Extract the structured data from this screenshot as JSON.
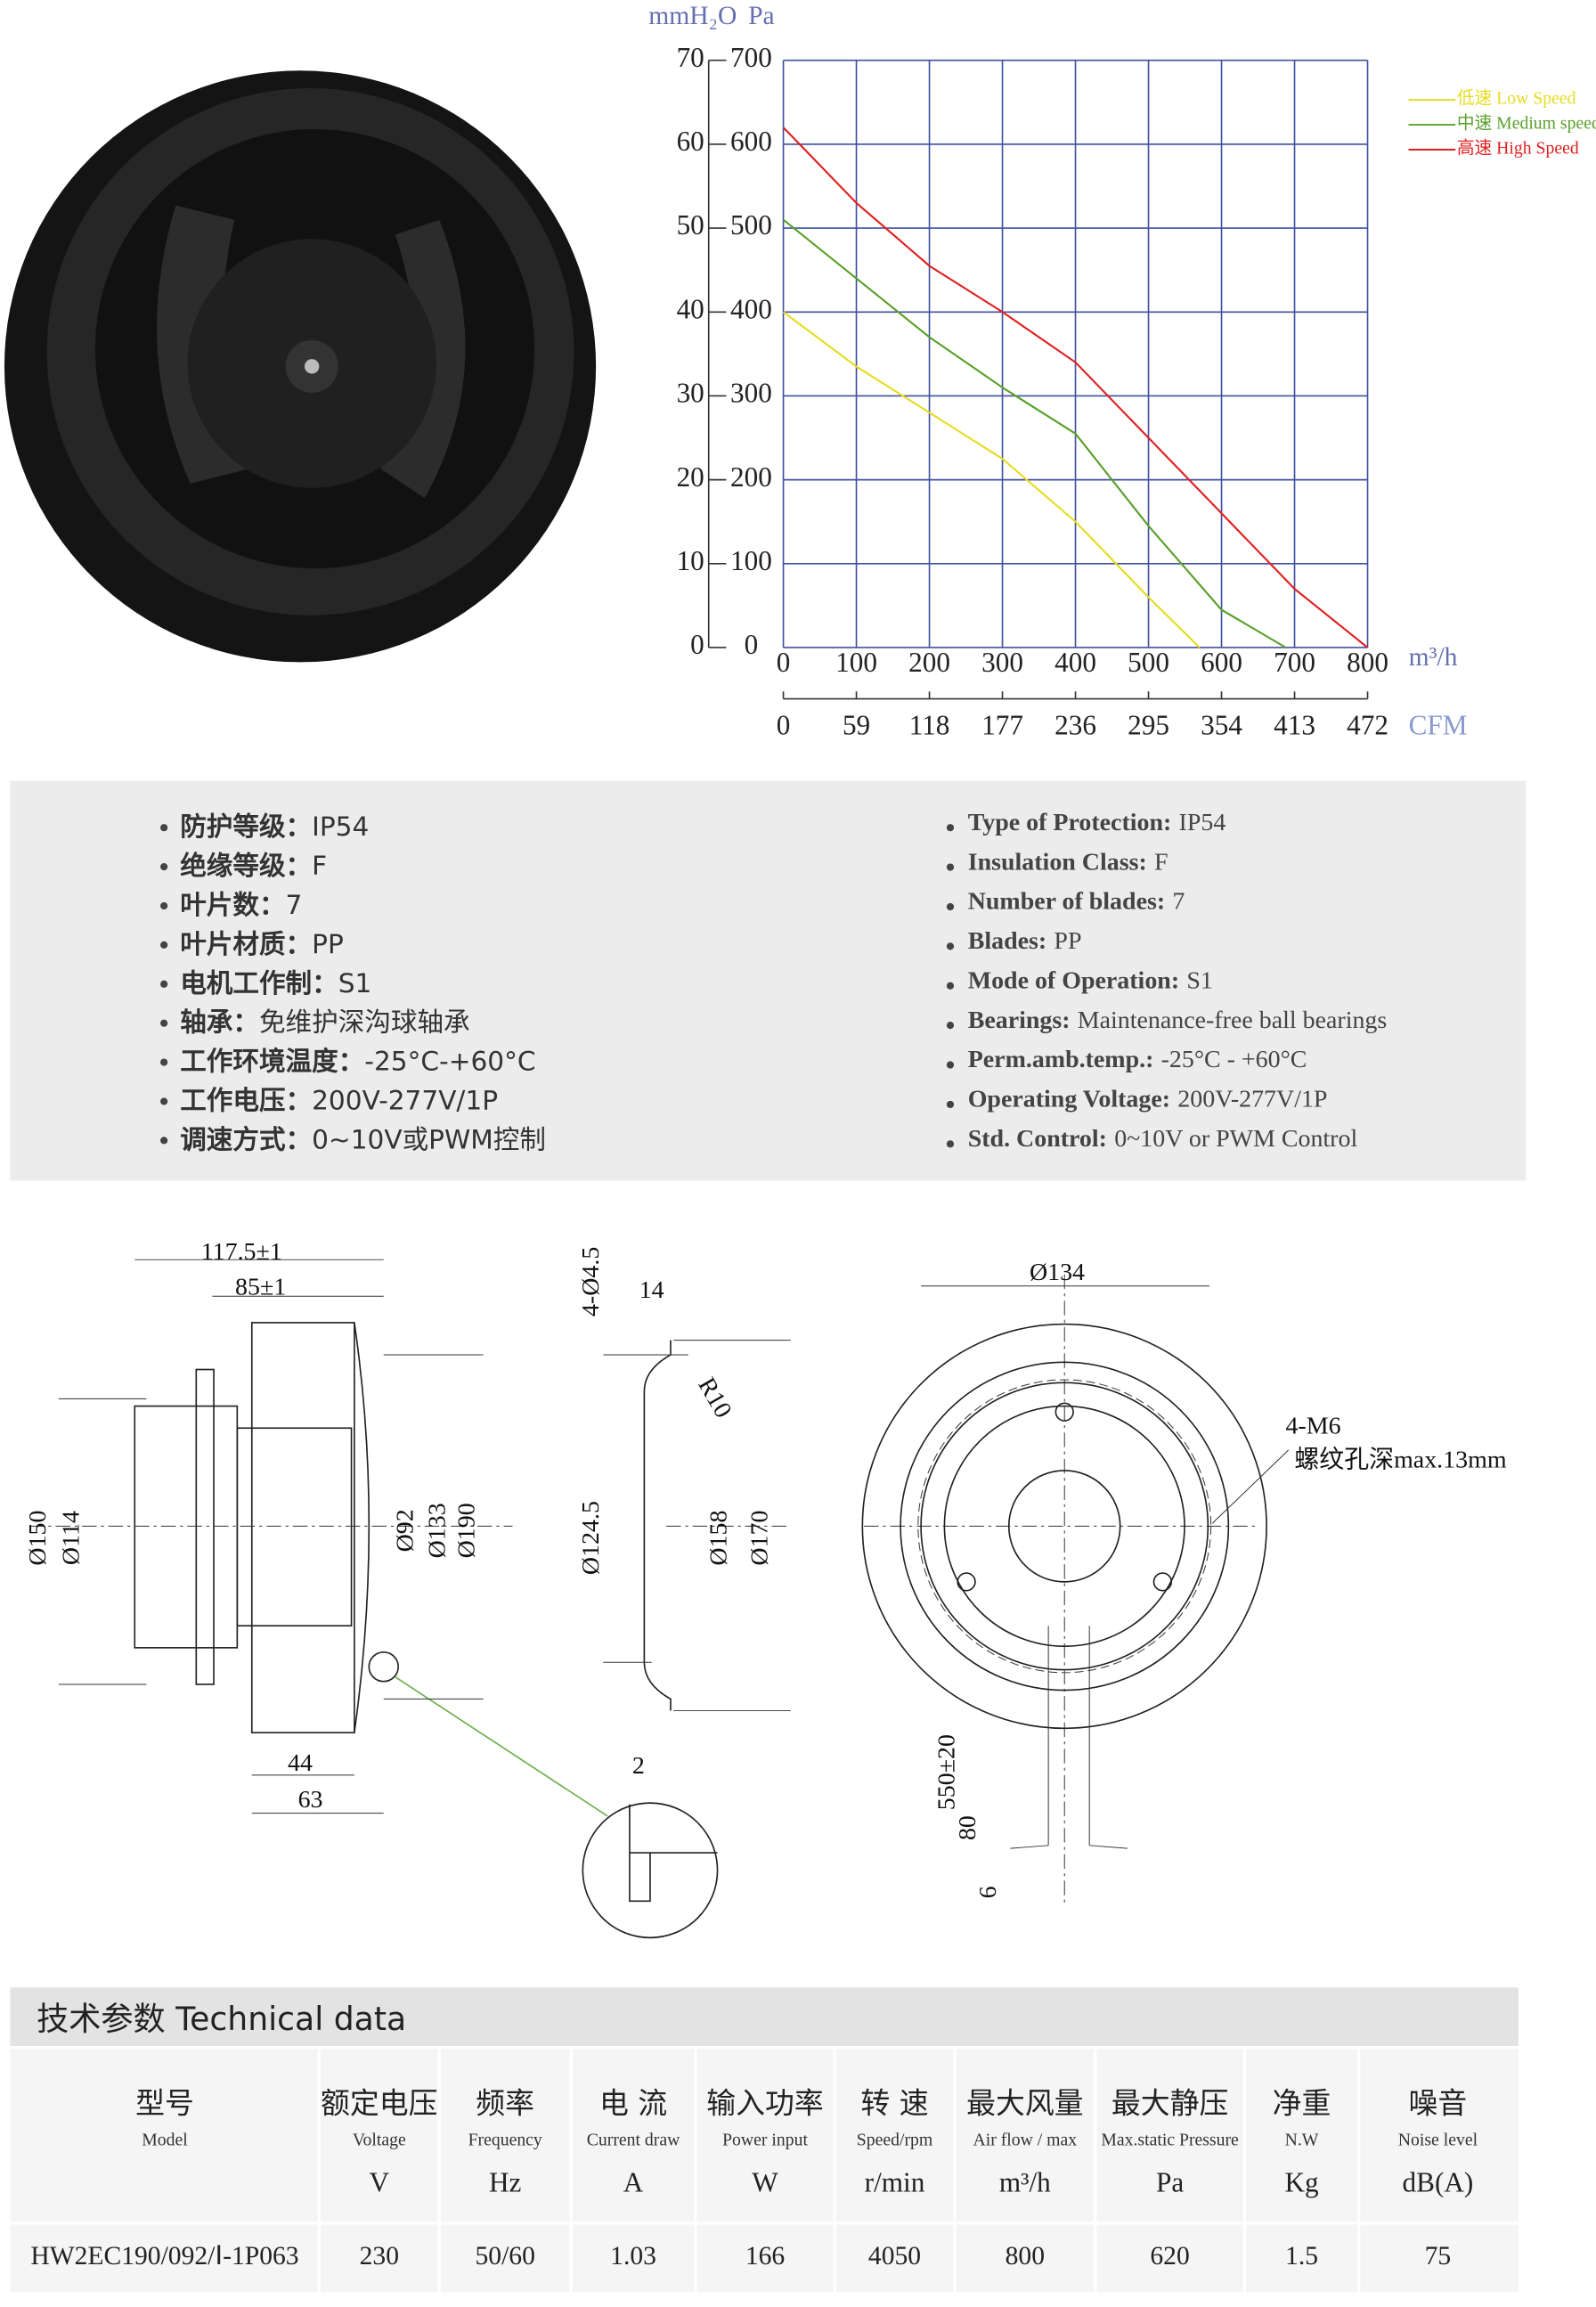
{
  "chart_data": {
    "type": "line",
    "y2_label": "mmH₂O",
    "y_label": "Pa",
    "x_label": "m³/h",
    "x2_label": "CFM",
    "xlim": [
      0,
      800
    ],
    "xticks": [
      0,
      100,
      200,
      300,
      400,
      500,
      600,
      700,
      800
    ],
    "x2lim": [
      0,
      472
    ],
    "x2ticks": [
      0,
      59,
      118,
      177,
      236,
      295,
      354,
      413,
      472
    ],
    "ylim": [
      0,
      700
    ],
    "yticks": [
      0,
      100,
      200,
      300,
      400,
      500,
      600,
      700
    ],
    "y2lim": [
      0,
      70
    ],
    "y2ticks": [
      0,
      10,
      20,
      30,
      40,
      50,
      60,
      70
    ],
    "grid": true,
    "legend": "top right",
    "series": [
      {
        "name": "低速 Low Speed",
        "color": "#e6dc1e",
        "x": [
          0,
          100,
          200,
          300,
          400,
          500,
          570
        ],
        "values": [
          400,
          335,
          280,
          225,
          150,
          60,
          0
        ]
      },
      {
        "name": "中速 Medium speed",
        "color": "#5aa02a",
        "x": [
          0,
          100,
          200,
          300,
          400,
          500,
          600,
          688
        ],
        "values": [
          510,
          440,
          370,
          310,
          255,
          145,
          45,
          0
        ]
      },
      {
        "name": "高速 High Speed",
        "color": "#e02020",
        "x": [
          0,
          100,
          200,
          300,
          400,
          500,
          600,
          700,
          800
        ],
        "values": [
          620,
          530,
          455,
          400,
          340,
          250,
          160,
          70,
          0
        ]
      }
    ]
  },
  "specs_zh": [
    {
      "label": "防护等级：",
      "value": "IP54"
    },
    {
      "label": "绝缘等级：",
      "value": "F"
    },
    {
      "label": "叶片数：",
      "value": "7"
    },
    {
      "label": "叶片材质：",
      "value": "PP"
    },
    {
      "label": "电机工作制：",
      "value": "S1"
    },
    {
      "label": "轴承：",
      "value": "免维护深沟球轴承"
    },
    {
      "label": "工作环境温度：",
      "value": "-25°C-+60°C"
    },
    {
      "label": "工作电压：",
      "value": "200V-277V/1P"
    },
    {
      "label": "调速方式：",
      "value": "0~10V或PWM控制"
    }
  ],
  "specs_en": [
    {
      "label": "Type of Protection:",
      "value": "IP54"
    },
    {
      "label": "Insulation Class:",
      "value": "F"
    },
    {
      "label": "Number of blades:",
      "value": "7"
    },
    {
      "label": "Blades:",
      "value": "PP"
    },
    {
      "label": "Mode of Operation:",
      "value": "S1"
    },
    {
      "label": "Bearings:",
      "value": "Maintenance-free ball bearings"
    },
    {
      "label": "Perm.amb.temp.:",
      "value": "-25°C - +60°C"
    },
    {
      "label": "Operating Voltage:",
      "value": "200V-277V/1P"
    },
    {
      "label": "Std. Control:",
      "value": "0~10V or PWM Control"
    }
  ],
  "drawing": {
    "labels": [
      "117.5±1",
      "85±1",
      "Ø150",
      "Ø114",
      "Ø92",
      "Ø133",
      "Ø190",
      "44",
      "63",
      "4-Ø4.5",
      "14",
      "R10",
      "Ø124.5",
      "Ø158",
      "Ø170",
      "2",
      "Ø134",
      "4-M6",
      "螺纹孔深max.13mm",
      "550±20",
      "80",
      "6"
    ]
  },
  "table": {
    "title": "技术参数 Technical data",
    "columns": [
      {
        "zh": "型号",
        "en": "Model",
        "unit": ""
      },
      {
        "zh": "额定电压",
        "en": "Voltage",
        "unit": "V"
      },
      {
        "zh": "频率",
        "en": "Frequency",
        "unit": "Hz"
      },
      {
        "zh": "电 流",
        "en": "Current draw",
        "unit": "A"
      },
      {
        "zh": "输入功率",
        "en": "Power input",
        "unit": "W"
      },
      {
        "zh": "转 速",
        "en": "Speed/rpm",
        "unit": "r/min"
      },
      {
        "zh": "最大风量",
        "en": "Air flow / max",
        "unit": "m³/h"
      },
      {
        "zh": "最大静压",
        "en": "Max.static Pressure",
        "unit": "Pa"
      },
      {
        "zh": "净重",
        "en": "N.W",
        "unit": "Kg"
      },
      {
        "zh": "噪音",
        "en": "Noise level",
        "unit": "dB(A)"
      }
    ],
    "rows": [
      [
        "HW2EC190/092/Ⅰ-1P063",
        "230",
        "50/60",
        "1.03",
        "166",
        "4050",
        "800",
        "620",
        "1.5",
        "75"
      ]
    ]
  }
}
